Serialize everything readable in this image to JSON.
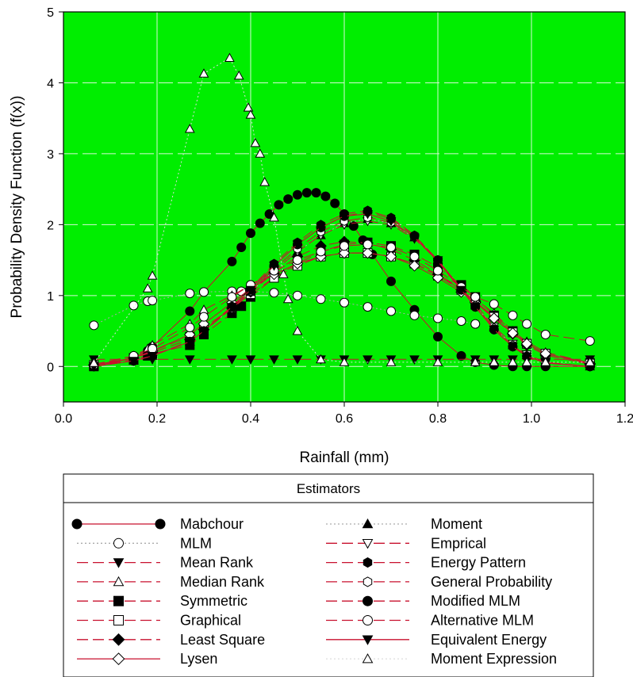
{
  "chart_data": {
    "type": "line",
    "xlabel": "Rainfall (mm)",
    "ylabel": "Probability Density Function (f(x))",
    "xlim": [
      0.0,
      1.2
    ],
    "ylim": [
      -0.5,
      5
    ],
    "x_ticks": [
      "0.0",
      "0.2",
      "0.4",
      "0.6",
      "0.8",
      "1.0",
      "1.2"
    ],
    "y_ticks": [
      "0",
      "1",
      "2",
      "3",
      "4",
      "5"
    ],
    "grid": true,
    "plot_background": "#00ee00",
    "legend": {
      "title": "Estimators",
      "placement": "below"
    },
    "series": [
      {
        "name": "Mabchour",
        "marker": "circle-filled",
        "line": "solid",
        "color": "#c8102e",
        "x": [
          0.065,
          0.15,
          0.18,
          0.19,
          0.27,
          0.3,
          0.36,
          0.38,
          0.4,
          0.42,
          0.44,
          0.46,
          0.48,
          0.5,
          0.52,
          0.54,
          0.56,
          0.58,
          0.6,
          0.62,
          0.64,
          0.66,
          0.7,
          0.75,
          0.8,
          0.85,
          0.88,
          0.92,
          0.96,
          0.99,
          1.03,
          1.125
        ],
        "y": [
          0.0,
          0.12,
          0.22,
          0.28,
          0.78,
          1.05,
          1.48,
          1.68,
          1.88,
          2.02,
          2.15,
          2.28,
          2.36,
          2.42,
          2.45,
          2.45,
          2.4,
          2.3,
          2.15,
          1.98,
          1.78,
          1.58,
          1.2,
          0.8,
          0.42,
          0.15,
          0.06,
          0.02,
          0.0,
          0.0,
          0.0,
          0.0
        ]
      },
      {
        "name": "MLM",
        "marker": "circle-open",
        "line": "dotted",
        "color": "#aaaaaa",
        "x": [
          0.065,
          0.15,
          0.18,
          0.19,
          0.27,
          0.3,
          0.36,
          0.38,
          0.4,
          0.45,
          0.5,
          0.55,
          0.6,
          0.65,
          0.7,
          0.75,
          0.8,
          0.85,
          0.88
        ],
        "y": [
          0.58,
          0.86,
          0.92,
          0.93,
          1.03,
          1.05,
          1.06,
          1.06,
          1.06,
          1.04,
          1.0,
          0.95,
          0.9,
          0.84,
          0.78,
          0.72,
          0.68,
          0.64,
          0.6
        ]
      },
      {
        "name": "Mean Rank",
        "marker": "triangle-down-filled",
        "line": "dashed",
        "color": "#c8102e",
        "x": [
          0.065,
          0.15,
          0.19,
          0.27,
          0.36,
          0.4,
          0.45,
          0.5,
          0.55,
          0.6,
          0.65,
          0.7,
          0.75,
          0.8,
          0.88,
          0.92,
          0.96,
          0.99,
          1.03,
          1.125
        ],
        "y": [
          0.1,
          0.1,
          0.1,
          0.1,
          0.1,
          0.1,
          0.1,
          0.1,
          0.1,
          0.1,
          0.1,
          0.1,
          0.1,
          0.1,
          0.1,
          0.1,
          0.1,
          0.1,
          0.1,
          0.1
        ]
      },
      {
        "name": "Median Rank",
        "marker": "triangle-open",
        "line": "dashed",
        "color": "#c8102e",
        "x": [
          0.065,
          0.15,
          0.18,
          0.19,
          0.27,
          0.3,
          0.36,
          0.4,
          0.45,
          0.5,
          0.55,
          0.6,
          0.65,
          0.7,
          0.75,
          0.8,
          0.85,
          0.88,
          0.92,
          0.96,
          0.99,
          1.03,
          1.125
        ],
        "y": [
          0.03,
          0.15,
          0.25,
          0.3,
          0.6,
          0.8,
          1.0,
          1.15,
          1.3,
          1.45,
          1.55,
          1.6,
          1.6,
          1.55,
          1.45,
          1.3,
          1.1,
          0.95,
          0.75,
          0.5,
          0.35,
          0.2,
          0.05
        ]
      },
      {
        "name": "Symmetric",
        "marker": "square-filled",
        "line": "dashed",
        "color": "#c8102e",
        "x": [
          0.065,
          0.15,
          0.18,
          0.19,
          0.27,
          0.3,
          0.36,
          0.38,
          0.4,
          0.45,
          0.5,
          0.55,
          0.6,
          0.65,
          0.7,
          0.75,
          0.8,
          0.85,
          0.88,
          0.92,
          0.96,
          0.99,
          1.03,
          1.125
        ],
        "y": [
          0.0,
          0.1,
          0.15,
          0.18,
          0.3,
          0.45,
          0.75,
          0.85,
          0.98,
          1.25,
          1.45,
          1.62,
          1.72,
          1.75,
          1.7,
          1.58,
          1.4,
          1.15,
          0.98,
          0.72,
          0.5,
          0.32,
          0.18,
          0.05
        ]
      },
      {
        "name": "Graphical",
        "marker": "square-open",
        "line": "dashed",
        "color": "#c8102e",
        "x": [
          0.065,
          0.15,
          0.19,
          0.27,
          0.3,
          0.36,
          0.4,
          0.45,
          0.5,
          0.55,
          0.6,
          0.65,
          0.7,
          0.75,
          0.8,
          0.85,
          0.88,
          0.92,
          0.96,
          0.99,
          1.03,
          1.125
        ],
        "y": [
          0.02,
          0.12,
          0.22,
          0.42,
          0.55,
          0.82,
          1.02,
          1.25,
          1.42,
          1.55,
          1.6,
          1.6,
          1.55,
          1.45,
          1.28,
          1.08,
          0.92,
          0.7,
          0.48,
          0.32,
          0.18,
          0.04
        ]
      },
      {
        "name": "Least Square",
        "marker": "diamond-filled",
        "line": "dashed",
        "color": "#c8102e",
        "x": [
          0.065,
          0.15,
          0.19,
          0.27,
          0.3,
          0.36,
          0.4,
          0.45,
          0.5,
          0.55,
          0.6,
          0.65,
          0.7,
          0.75,
          0.8,
          0.85,
          0.88,
          0.92,
          0.96,
          0.99,
          1.03,
          1.125
        ],
        "y": [
          0.02,
          0.12,
          0.2,
          0.38,
          0.52,
          0.82,
          1.05,
          1.32,
          1.55,
          1.7,
          1.76,
          1.74,
          1.65,
          1.5,
          1.3,
          1.08,
          0.92,
          0.68,
          0.46,
          0.3,
          0.16,
          0.03
        ]
      },
      {
        "name": "Lysen",
        "marker": "diamond-open",
        "line": "solid",
        "color": "#c8102e",
        "x": [
          0.065,
          0.15,
          0.19,
          0.27,
          0.3,
          0.36,
          0.4,
          0.45,
          0.5,
          0.55,
          0.6,
          0.65,
          0.7,
          0.75,
          0.8,
          0.85,
          0.88,
          0.92,
          0.96,
          0.99,
          1.03,
          1.125
        ],
        "y": [
          0.02,
          0.12,
          0.22,
          0.45,
          0.6,
          0.9,
          1.1,
          1.3,
          1.45,
          1.55,
          1.6,
          1.6,
          1.55,
          1.42,
          1.25,
          1.05,
          0.9,
          0.68,
          0.47,
          0.32,
          0.18,
          0.04
        ]
      },
      {
        "name": "Moment",
        "marker": "triangle-up-filled",
        "line": "dotted",
        "color": "#aaaaaa",
        "x": [
          0.065,
          0.15,
          0.19,
          0.27,
          0.3,
          0.36,
          0.4,
          0.45,
          0.5,
          0.55,
          0.6,
          0.65,
          0.7,
          0.75,
          0.8,
          0.85,
          0.88,
          0.92,
          0.96,
          0.99,
          1.03,
          1.125
        ],
        "y": [
          0.0,
          0.08,
          0.15,
          0.35,
          0.5,
          0.82,
          1.05,
          1.35,
          1.62,
          1.85,
          2.02,
          2.08,
          2.02,
          1.82,
          1.5,
          1.1,
          0.86,
          0.55,
          0.3,
          0.16,
          0.06,
          0.0
        ]
      },
      {
        "name": "Emprical",
        "marker": "triangle-down-open",
        "line": "dashed",
        "color": "#c8102e",
        "x": [
          0.065,
          0.15,
          0.19,
          0.27,
          0.3,
          0.36,
          0.4,
          0.45,
          0.5,
          0.55,
          0.6,
          0.65,
          0.7,
          0.75,
          0.8,
          0.85,
          0.88,
          0.92,
          0.96,
          0.99,
          1.03,
          1.125
        ],
        "y": [
          0.0,
          0.08,
          0.15,
          0.36,
          0.5,
          0.82,
          1.05,
          1.35,
          1.62,
          1.85,
          2.0,
          2.05,
          2.0,
          1.8,
          1.5,
          1.1,
          0.88,
          0.56,
          0.32,
          0.17,
          0.06,
          0.0
        ]
      },
      {
        "name": "Energy Pattern",
        "marker": "hexagon-filled",
        "line": "dashed",
        "color": "#c8102e",
        "x": [
          0.065,
          0.15,
          0.19,
          0.27,
          0.3,
          0.36,
          0.4,
          0.45,
          0.5,
          0.55,
          0.6,
          0.65,
          0.7,
          0.75,
          0.8,
          0.85,
          0.88,
          0.92,
          0.96,
          0.99,
          1.03,
          1.125
        ],
        "y": [
          0.0,
          0.08,
          0.15,
          0.35,
          0.5,
          0.85,
          1.1,
          1.45,
          1.75,
          2.0,
          2.15,
          2.2,
          2.1,
          1.85,
          1.5,
          1.08,
          0.84,
          0.52,
          0.28,
          0.14,
          0.05,
          0.0
        ]
      },
      {
        "name": "General Probability",
        "marker": "hexagon-open",
        "line": "dashed",
        "color": "#c8102e",
        "x": [
          0.065,
          0.15,
          0.19,
          0.27,
          0.3,
          0.36,
          0.4,
          0.45,
          0.5,
          0.55,
          0.6,
          0.65,
          0.7,
          0.75,
          0.8,
          0.85,
          0.88,
          0.92,
          0.96,
          0.99,
          1.03,
          1.125
        ],
        "y": [
          0.0,
          0.08,
          0.15,
          0.35,
          0.5,
          0.82,
          1.06,
          1.38,
          1.66,
          1.9,
          2.05,
          2.1,
          2.03,
          1.82,
          1.5,
          1.1,
          0.86,
          0.54,
          0.3,
          0.15,
          0.05,
          0.0
        ]
      },
      {
        "name": "Modified MLM",
        "marker": "circle-filled",
        "line": "dashed",
        "color": "#c8102e",
        "x": [
          0.065,
          0.15,
          0.19,
          0.27,
          0.3,
          0.36,
          0.4,
          0.45,
          0.5,
          0.55,
          0.6,
          0.65,
          0.7,
          0.75,
          0.8,
          0.85,
          0.88,
          0.92,
          0.96,
          0.99,
          1.03,
          1.125
        ],
        "y": [
          0.0,
          0.08,
          0.15,
          0.35,
          0.5,
          0.84,
          1.08,
          1.42,
          1.72,
          1.96,
          2.12,
          2.18,
          2.08,
          1.84,
          1.5,
          1.08,
          0.84,
          0.52,
          0.28,
          0.14,
          0.05,
          0.0
        ]
      },
      {
        "name": "Alternative MLM",
        "marker": "circle-open",
        "line": "dashed",
        "color": "#c8102e",
        "x": [
          0.065,
          0.15,
          0.19,
          0.27,
          0.3,
          0.36,
          0.4,
          0.45,
          0.5,
          0.55,
          0.6,
          0.65,
          0.7,
          0.75,
          0.8,
          0.85,
          0.88,
          0.92,
          0.96,
          0.99,
          1.03,
          1.125
        ],
        "y": [
          0.02,
          0.15,
          0.25,
          0.55,
          0.7,
          0.98,
          1.15,
          1.35,
          1.5,
          1.62,
          1.7,
          1.72,
          1.68,
          1.55,
          1.35,
          1.12,
          0.98,
          0.88,
          0.72,
          0.6,
          0.45,
          0.36
        ]
      },
      {
        "name": "Equivalent Energy",
        "marker": "triangle-down-filled",
        "line": "solid",
        "color": "#c8102e",
        "x": [
          0.065,
          0.15,
          0.19,
          0.27,
          0.3,
          0.36,
          0.4,
          0.45,
          0.5,
          0.55,
          0.6,
          0.65,
          0.7,
          0.75,
          0.8,
          0.85,
          0.88,
          0.92,
          0.96,
          0.99,
          1.03,
          1.125
        ],
        "y": [
          0.0,
          0.08,
          0.15,
          0.35,
          0.5,
          0.84,
          1.08,
          1.42,
          1.72,
          1.96,
          2.12,
          2.15,
          2.05,
          1.82,
          1.48,
          1.08,
          0.84,
          0.52,
          0.28,
          0.14,
          0.05,
          0.0
        ]
      },
      {
        "name": "Moment Expression",
        "marker": "triangle-open",
        "line": "dotted",
        "color": "#dddddd",
        "x": [
          0.065,
          0.18,
          0.19,
          0.27,
          0.3,
          0.355,
          0.375,
          0.395,
          0.4,
          0.41,
          0.42,
          0.43,
          0.45,
          0.47,
          0.48,
          0.5,
          0.55,
          0.6,
          0.7,
          0.8,
          0.88,
          0.92,
          0.96,
          0.99,
          1.03,
          1.125
        ],
        "y": [
          0.05,
          1.1,
          1.28,
          3.35,
          4.13,
          4.35,
          4.1,
          3.65,
          3.55,
          3.15,
          3.0,
          2.6,
          2.1,
          1.3,
          0.95,
          0.5,
          0.1,
          0.06,
          0.06,
          0.06,
          0.06,
          0.06,
          0.06,
          0.06,
          0.06,
          0.06
        ]
      }
    ]
  }
}
